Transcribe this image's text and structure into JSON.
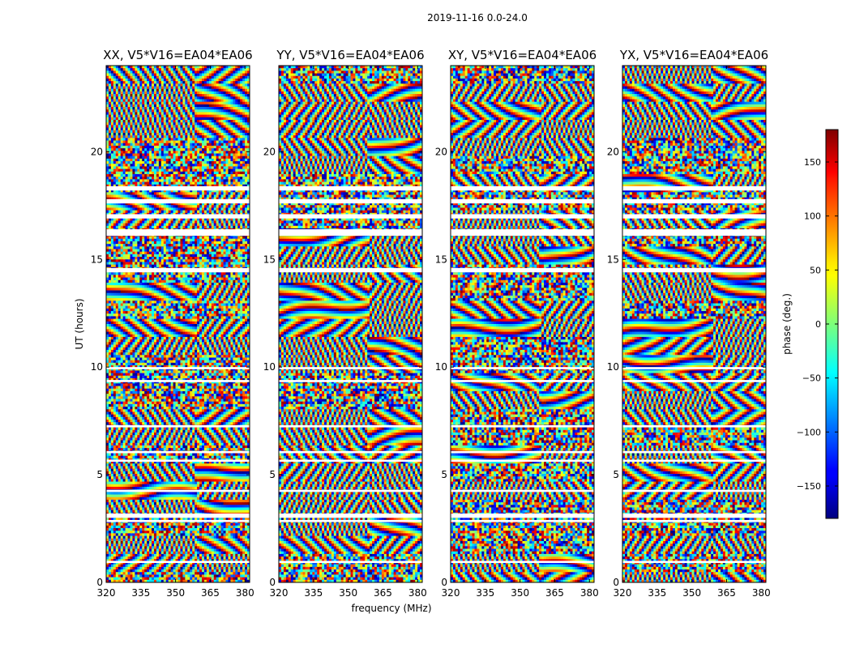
{
  "chart_data": {
    "type": "heatmap",
    "suptitle": "2019-11-16 0.0-24.0",
    "xlabel": "frequency (MHz)",
    "ylabel": "UT (hours)",
    "xlim": [
      320,
      382
    ],
    "ylim": [
      0,
      24
    ],
    "xticks": [
      320,
      335,
      350,
      365,
      380
    ],
    "xtick_labels": [
      "320",
      "335",
      "350",
      "365",
      "380"
    ],
    "yticks": [
      0,
      5,
      10,
      15,
      20
    ],
    "ytick_labels": [
      "0",
      "5",
      "10",
      "15",
      "20"
    ],
    "panels": [
      {
        "title": "XX, V5*V16=EA04*EA06",
        "polarization": "XX"
      },
      {
        "title": "YY, V5*V16=EA04*EA06",
        "polarization": "YY"
      },
      {
        "title": "XY, V5*V16=EA04*EA06",
        "polarization": "XY"
      },
      {
        "title": "YX, V5*V16=EA04*EA06",
        "polarization": "YX"
      }
    ],
    "colorbar": {
      "label": "phase (deg.)",
      "range": [
        -180,
        180
      ],
      "ticks": [
        -150,
        -100,
        -50,
        0,
        50,
        100,
        150
      ],
      "tick_labels": [
        "−150",
        "−100",
        "−50",
        "0",
        "50",
        "100",
        "150"
      ],
      "colormap": "jet"
    },
    "flagged_ut_gaps_hours": [
      [
        18.2,
        18.4
      ],
      [
        17.6,
        17.8
      ],
      [
        16.9,
        17.1
      ],
      [
        16.1,
        16.4
      ],
      [
        14.4,
        14.6
      ],
      [
        9.9,
        10.0
      ],
      [
        9.3,
        9.4
      ],
      [
        7.2,
        7.3
      ],
      [
        6.0,
        6.1
      ],
      [
        5.6,
        5.7
      ],
      [
        4.2,
        4.3
      ],
      [
        3.0,
        3.2
      ],
      [
        2.8,
        2.9
      ],
      [
        0.9,
        1.0
      ]
    ]
  }
}
